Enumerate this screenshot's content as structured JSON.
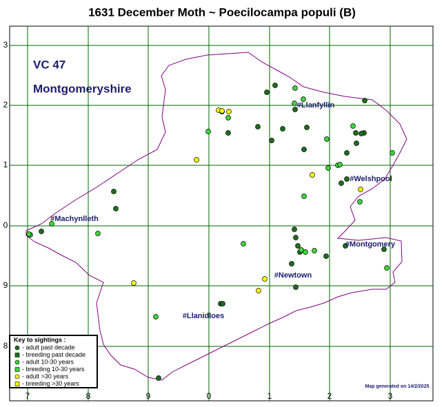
{
  "header": {
    "title": "1631 December Moth ~ Poecilocampa populi (B)"
  },
  "map": {
    "vc": "VC 47",
    "county": "Montgomeryshire",
    "x_labels": [
      "7",
      "8",
      "9",
      "0",
      "1",
      "2",
      "3"
    ],
    "y_labels": [
      "3",
      "2",
      "1",
      "0",
      "9",
      "8"
    ],
    "places": [
      "#Llanfyllin",
      "#Welshpool",
      "#Machynlleth",
      "#Montgomery",
      "#Newtown",
      "#Llanidloes"
    ]
  },
  "legend": {
    "title": "Key to sightings :",
    "items": [
      "- adult past decade",
      "- breeding past decade",
      "- adult 10-30 years",
      "- breeding 10-30 years",
      "- adult >30 years",
      "- breeding >30 years"
    ]
  },
  "footer": "Map generated on 14/2/2025"
}
